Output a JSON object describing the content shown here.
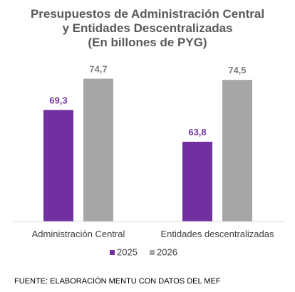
{
  "source": "FUENTE: ELABORACIÓN MENTU CON DATOS DEL MEF",
  "colors": {
    "series_2025": "#7030a0",
    "series_2026": "#a6a6a6",
    "axis": "#d9d9d9",
    "title": "#595959"
  },
  "chart_data": {
    "type": "bar",
    "title_lines": [
      "Presupuestos de Administración Central",
      "y Entidades Descentralizadas",
      "(En billones de PYG)"
    ],
    "categories": [
      "Administración Central",
      "Entidades descentralizadas"
    ],
    "series": [
      {
        "name": "2025",
        "values": [
          69.3,
          63.8
        ],
        "labels": [
          "69,3",
          "63,8"
        ]
      },
      {
        "name": "2026",
        "values": [
          74.7,
          74.5
        ],
        "labels": [
          "74,7",
          "74,5"
        ]
      }
    ],
    "xlabel": "",
    "ylabel": "",
    "ylim": [
      50,
      76
    ],
    "grid": false,
    "legend_position": "bottom"
  }
}
